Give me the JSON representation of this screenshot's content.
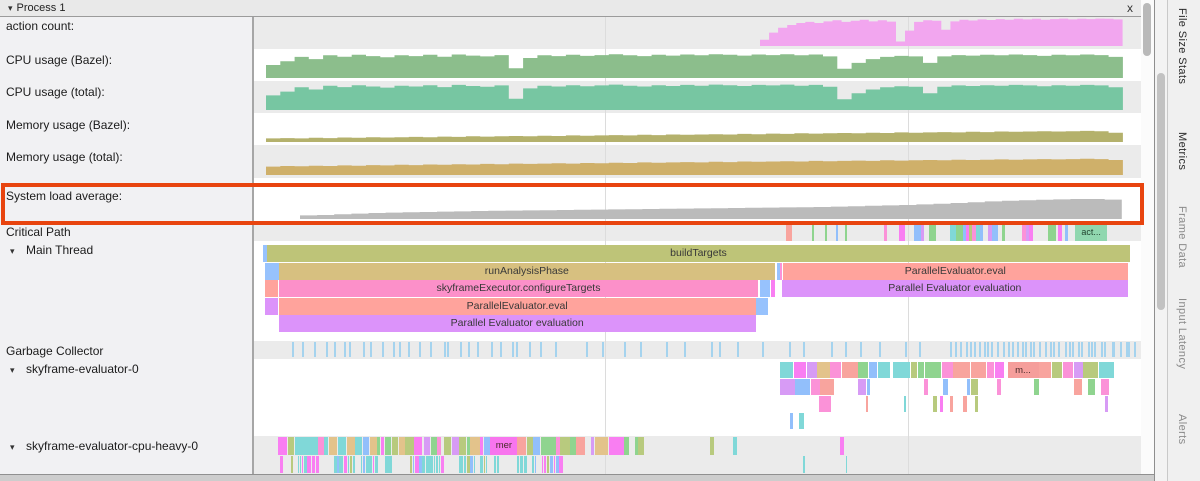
{
  "panel": {
    "title": "Process 1",
    "close_label": "x"
  },
  "sidebar": {
    "items": [
      {
        "id": "action",
        "label": "action count:",
        "group": false
      },
      {
        "id": "cpub",
        "label": "CPU usage (Bazel):",
        "group": false
      },
      {
        "id": "cput",
        "label": "CPU usage (total):",
        "group": false
      },
      {
        "id": "memb",
        "label": "Memory usage (Bazel):",
        "group": false
      },
      {
        "id": "memt",
        "label": "Memory usage (total):",
        "group": false
      },
      {
        "id": "load",
        "label": "System load average:",
        "group": false
      },
      {
        "id": "cp",
        "label": "Critical Path",
        "group": false
      },
      {
        "id": "main",
        "label": "Main Thread",
        "group": true
      },
      {
        "id": "gc",
        "label": "Garbage Collector",
        "group": false
      },
      {
        "id": "ev0",
        "label": "skyframe-evaluator-0",
        "group": true
      },
      {
        "id": "heavy",
        "label": "skyframe-evaluator-cpu-heavy-0",
        "group": true
      }
    ]
  },
  "chart_data": [
    {
      "type": "area",
      "id": "action",
      "title": "action count:",
      "color": "#f2a6ef",
      "f0": 0.566,
      "f1": 0.979,
      "max_h": 28,
      "values": [
        0.22,
        0.48,
        0.65,
        0.75,
        0.82,
        0.86,
        0.82,
        0.88,
        0.92,
        0.86,
        0.9,
        0.94,
        0.88,
        0.92,
        0.87,
        0.16,
        0.55,
        0.86,
        0.92,
        0.9,
        0.58,
        0.88,
        0.94,
        0.91,
        0.95,
        0.93,
        0.96,
        0.94,
        0.97,
        0.95,
        0.97,
        0.94,
        0.96,
        0.98,
        0.95,
        0.97,
        0.96,
        0.98,
        0.97,
        0.95
      ]
    },
    {
      "type": "area",
      "id": "cpub",
      "title": "CPU usage (Bazel):",
      "color": "#8cbe8c",
      "f0": 0.003,
      "f1": 0.979,
      "max_h": 27,
      "values": [
        0.48,
        0.62,
        0.78,
        0.7,
        0.84,
        0.79,
        0.86,
        0.81,
        0.77,
        0.84,
        0.81,
        0.86,
        0.79,
        0.87,
        0.83,
        0.8,
        0.85,
        0.36,
        0.74,
        0.84,
        0.81,
        0.86,
        0.82,
        0.85,
        0.88,
        0.84,
        0.81,
        0.86,
        0.83,
        0.87,
        0.84,
        0.88,
        0.86,
        0.83,
        0.87,
        0.85,
        0.88,
        0.84,
        0.87,
        0.8,
        0.34,
        0.56,
        0.7,
        0.78,
        0.82,
        0.8,
        0.56,
        0.8,
        0.85,
        0.83,
        0.86,
        0.84,
        0.87,
        0.85,
        0.82,
        0.86,
        0.84,
        0.87,
        0.85,
        0.78
      ]
    },
    {
      "type": "area",
      "id": "cput",
      "title": "CPU usage (total):",
      "color": "#77c6a2",
      "f0": 0.003,
      "f1": 0.979,
      "max_h": 27,
      "values": [
        0.54,
        0.68,
        0.84,
        0.76,
        0.9,
        0.85,
        0.92,
        0.87,
        0.83,
        0.9,
        0.87,
        0.92,
        0.85,
        0.93,
        0.89,
        0.86,
        0.91,
        0.42,
        0.8,
        0.9,
        0.87,
        0.92,
        0.88,
        0.91,
        0.94,
        0.9,
        0.87,
        0.92,
        0.89,
        0.93,
        0.9,
        0.94,
        0.92,
        0.89,
        0.93,
        0.91,
        0.94,
        0.9,
        0.93,
        0.86,
        0.4,
        0.62,
        0.76,
        0.84,
        0.88,
        0.86,
        0.62,
        0.86,
        0.91,
        0.89,
        0.92,
        0.9,
        0.93,
        0.91,
        0.88,
        0.92,
        0.9,
        0.93,
        0.91,
        0.84
      ]
    },
    {
      "type": "area",
      "id": "memb",
      "title": "Memory usage (Bazel):",
      "color": "#b4b16c",
      "f0": 0.003,
      "f1": 0.979,
      "max_h": 30,
      "values": [
        0.12,
        0.13,
        0.12,
        0.14,
        0.13,
        0.15,
        0.14,
        0.16,
        0.15,
        0.16,
        0.17,
        0.16,
        0.18,
        0.17,
        0.19,
        0.18,
        0.19,
        0.2,
        0.19,
        0.21,
        0.2,
        0.22,
        0.21,
        0.22,
        0.23,
        0.22,
        0.24,
        0.23,
        0.25,
        0.24,
        0.25,
        0.26,
        0.25,
        0.27,
        0.26,
        0.28,
        0.27,
        0.29,
        0.28,
        0.29,
        0.3,
        0.29,
        0.31,
        0.3,
        0.32,
        0.31,
        0.32,
        0.33,
        0.32,
        0.34,
        0.33,
        0.35,
        0.34,
        0.35,
        0.36,
        0.35,
        0.36,
        0.37,
        0.36,
        0.31
      ]
    },
    {
      "type": "area",
      "id": "memt",
      "title": "Memory usage (total):",
      "color": "#cfb06a",
      "f0": 0.003,
      "f1": 0.979,
      "max_h": 30,
      "values": [
        0.28,
        0.3,
        0.29,
        0.31,
        0.3,
        0.32,
        0.31,
        0.33,
        0.32,
        0.34,
        0.33,
        0.35,
        0.34,
        0.36,
        0.35,
        0.37,
        0.36,
        0.38,
        0.37,
        0.38,
        0.39,
        0.38,
        0.4,
        0.39,
        0.41,
        0.4,
        0.42,
        0.41,
        0.42,
        0.43,
        0.42,
        0.44,
        0.43,
        0.45,
        0.44,
        0.45,
        0.46,
        0.45,
        0.47,
        0.46,
        0.47,
        0.48,
        0.47,
        0.49,
        0.48,
        0.49,
        0.5,
        0.49,
        0.51,
        0.5,
        0.51,
        0.52,
        0.51,
        0.52,
        0.53,
        0.52,
        0.53,
        0.54,
        0.53,
        0.5
      ]
    },
    {
      "type": "area",
      "id": "load",
      "title": "System load average:",
      "color": "#bbbbbb",
      "f0": 0.042,
      "f1": 0.978,
      "max_h": 20,
      "values": [
        0.18,
        0.2,
        0.24,
        0.27,
        0.3,
        0.32,
        0.34,
        0.35,
        0.37,
        0.38,
        0.4,
        0.41,
        0.42,
        0.43,
        0.44,
        0.45,
        0.46,
        0.47,
        0.48,
        0.49,
        0.5,
        0.51,
        0.52,
        0.53,
        0.54,
        0.55,
        0.56,
        0.57,
        0.58,
        0.59,
        0.6,
        0.62,
        0.64,
        0.66,
        0.68,
        0.7,
        0.73,
        0.76,
        0.8,
        0.84,
        0.88,
        0.91,
        0.94,
        0.96,
        0.98,
        1.0,
        1.0,
        0.97
      ]
    }
  ],
  "critical_path": {
    "chips": [
      [
        0.596,
        6,
        "#f8a49e"
      ],
      [
        0.625,
        2,
        "#8fd48f"
      ],
      [
        0.64,
        2,
        "#8fd48f"
      ],
      [
        0.653,
        2,
        "#92bffb"
      ],
      [
        0.663,
        2,
        "#8fd48f"
      ],
      [
        0.707,
        3,
        "#fb92d8"
      ],
      [
        0.724,
        6,
        "#f97ef2"
      ],
      [
        0.741,
        7,
        "#92bffb"
      ],
      [
        0.749,
        3,
        "#d79bf5"
      ],
      [
        0.758,
        7,
        "#8fd48f"
      ],
      [
        0.782,
        6,
        "#80d8d8"
      ],
      [
        0.789,
        7,
        "#8fd48f"
      ],
      [
        0.797,
        3,
        "#92bffb"
      ],
      [
        0.801,
        3,
        "#f97ef2"
      ],
      [
        0.804,
        3,
        "#b8ca7e"
      ],
      [
        0.807,
        4,
        "#fb92d8"
      ],
      [
        0.812,
        4,
        "#80d8d8"
      ],
      [
        0.817,
        3,
        "#92bffb"
      ],
      [
        0.826,
        4,
        "#d79bf5"
      ],
      [
        0.83,
        6,
        "#92bffb"
      ],
      [
        0.842,
        3,
        "#8fd48f"
      ],
      [
        0.864,
        4,
        "#fb92d8"
      ],
      [
        0.869,
        4,
        "#d79bf5"
      ],
      [
        0.873,
        4,
        "#f97ef2"
      ],
      [
        0.894,
        8,
        "#8fd48f"
      ],
      [
        0.905,
        4,
        "#f97ef2"
      ],
      [
        0.913,
        3,
        "#92bffb"
      ]
    ],
    "labeled_chip": {
      "f": 0.925,
      "w": 32,
      "label": "act...",
      "color": "#90d7af"
    }
  },
  "main_thread": {
    "rows": [
      [
        {
          "f0": 0.0,
          "f1": 0.004,
          "c": "#97c2fd",
          "t": ""
        },
        {
          "f0": 0.004,
          "f1": 0.988,
          "c": "#bec478",
          "t": "buildTargets"
        }
      ],
      [
        {
          "f0": 0.002,
          "f1": 0.018,
          "c": "#97c2fd",
          "t": ""
        },
        {
          "f0": 0.018,
          "f1": 0.583,
          "c": "#d7c080",
          "t": "runAnalysisPhase"
        },
        {
          "f0": 0.585,
          "f1": 0.589,
          "c": "#97c2fd",
          "t": ""
        },
        {
          "f0": 0.589,
          "f1": 0.591,
          "c": "#fb92d8",
          "t": ""
        },
        {
          "f0": 0.592,
          "f1": 0.985,
          "c": "#ffa39c",
          "t": "ParallelEvaluator.eval"
        }
      ],
      [
        {
          "f0": 0.002,
          "f1": 0.017,
          "c": "#ffa39c",
          "t": ""
        },
        {
          "f0": 0.018,
          "f1": 0.564,
          "c": "#fc90c9",
          "t": "skyframeExecutor.configureTargets"
        },
        {
          "f0": 0.566,
          "f1": 0.578,
          "c": "#97c2fd",
          "t": ""
        },
        {
          "f0": 0.579,
          "f1": 0.583,
          "c": "#f97ef2",
          "t": ""
        },
        {
          "f0": 0.591,
          "f1": 0.985,
          "c": "#dc93fa",
          "t": "Parallel Evaluator evaluation"
        }
      ],
      [
        {
          "f0": 0.002,
          "f1": 0.017,
          "c": "#dc93fa",
          "t": ""
        },
        {
          "f0": 0.018,
          "f1": 0.561,
          "c": "#ffa39c",
          "t": "ParallelEvaluator.eval"
        },
        {
          "f0": 0.561,
          "f1": 0.575,
          "c": "#97c2fd",
          "t": ""
        }
      ],
      [
        {
          "f0": 0.018,
          "f1": 0.561,
          "c": "#dc93fa",
          "t": "Parallel Evaluator evaluation"
        }
      ]
    ]
  },
  "gc": {
    "tick_color": "#a5d3ee",
    "clusters": [
      {
        "f0": 0.031,
        "f1": 0.32,
        "n": 26
      },
      {
        "f0": 0.33,
        "f1": 0.77,
        "n": 19
      },
      {
        "f0": 0.78,
        "f1": 0.995,
        "n": 40
      }
    ]
  },
  "random_tracks": {
    "palette": [
      "#fb92d8",
      "#92bffb",
      "#8fd48f",
      "#80d8d8",
      "#d79bf5",
      "#f8a49e",
      "#b8ca7e",
      "#f97ef2",
      "#e3c38b"
    ],
    "teal_palette": [
      "#80d8d8",
      "#80d8d8",
      "#80d8d8",
      "#92bffb",
      "#f97ef2",
      "#b8ca7e"
    ],
    "clusters": [
      {
        "track": "ev0",
        "row": 0,
        "f0": 0.589,
        "f1": 0.663,
        "density": 0.97,
        "wMin": 8,
        "wMax": 22,
        "seed": 11
      },
      {
        "track": "ev0",
        "row": 1,
        "f0": 0.589,
        "f1": 0.663,
        "density": 0.75,
        "wMin": 6,
        "wMax": 16,
        "seed": 12
      },
      {
        "track": "ev0",
        "row": 2,
        "f0": 0.589,
        "f1": 0.663,
        "density": 0.6,
        "wMin": 5,
        "wMax": 14,
        "seed": 13
      },
      {
        "track": "ev0",
        "row": 3,
        "f0": 0.6,
        "f1": 0.64,
        "density": 0.3,
        "wMin": 3,
        "wMax": 6,
        "seed": 14
      },
      {
        "track": "ev0",
        "row": 0,
        "f0": 0.678,
        "f1": 0.839,
        "density": 0.95,
        "wMin": 6,
        "wMax": 18,
        "seed": 21
      },
      {
        "track": "ev0",
        "row": 1,
        "f0": 0.678,
        "f1": 0.839,
        "density": 0.55,
        "wMin": 3,
        "wMax": 8,
        "seed": 22
      },
      {
        "track": "ev0",
        "row": 2,
        "f0": 0.678,
        "f1": 0.839,
        "density": 0.3,
        "wMin": 2,
        "wMax": 5,
        "seed": 23
      },
      {
        "track": "ev0",
        "row": 3,
        "f0": 0.66,
        "f1": 0.84,
        "density": 0.05,
        "wMin": 2,
        "wMax": 4,
        "seed": 24
      },
      {
        "track": "ev0",
        "row": 0,
        "f0": 0.848,
        "f1": 0.959,
        "density": 0.95,
        "wMin": 8,
        "wMax": 18,
        "seed": 31
      },
      {
        "track": "ev0",
        "row": 1,
        "f0": 0.848,
        "f1": 0.959,
        "density": 0.5,
        "wMin": 3,
        "wMax": 8,
        "seed": 32
      },
      {
        "track": "ev0",
        "row": 2,
        "f0": 0.848,
        "f1": 0.959,
        "density": 0.28,
        "wMin": 2,
        "wMax": 5,
        "seed": 33
      },
      {
        "track": "heavy",
        "row": 0,
        "f0": 0.017,
        "f1": 0.429,
        "density": 0.96,
        "wMin": 2,
        "wMax": 10,
        "seed": 41
      },
      {
        "track": "heavy",
        "row": 0,
        "f0": 0.43,
        "f1": 0.69,
        "density": 0.12,
        "wMin": 2,
        "wMax": 5,
        "seed": 42
      },
      {
        "track": "heavy",
        "row": 1,
        "f0": 0.019,
        "f1": 0.34,
        "density": 0.85,
        "wMin": 1,
        "wMax": 4,
        "seed": 43,
        "teal": true
      },
      {
        "track": "heavy",
        "row": 1,
        "f0": 0.34,
        "f1": 0.69,
        "density": 0.12,
        "wMin": 1,
        "wMax": 3,
        "seed": 44,
        "teal": true
      }
    ],
    "chips": [
      {
        "track": "ev0",
        "row": 0,
        "f": 0.848,
        "w": 31,
        "label": "m...",
        "color": "#f59e9b"
      },
      {
        "track": "heavy",
        "row": 0,
        "f": 0.259,
        "w": 27,
        "label": "mer",
        "color": "#f875ee"
      }
    ]
  },
  "tabs": {
    "items": [
      {
        "label": "File Size Stats",
        "muted": false
      },
      {
        "label": "Metrics",
        "muted": false
      },
      {
        "label": "Frame Data",
        "muted": true
      },
      {
        "label": "Input Latency",
        "muted": true
      },
      {
        "label": "Alerts",
        "muted": true
      }
    ]
  },
  "highlight_color": "#e8440f"
}
